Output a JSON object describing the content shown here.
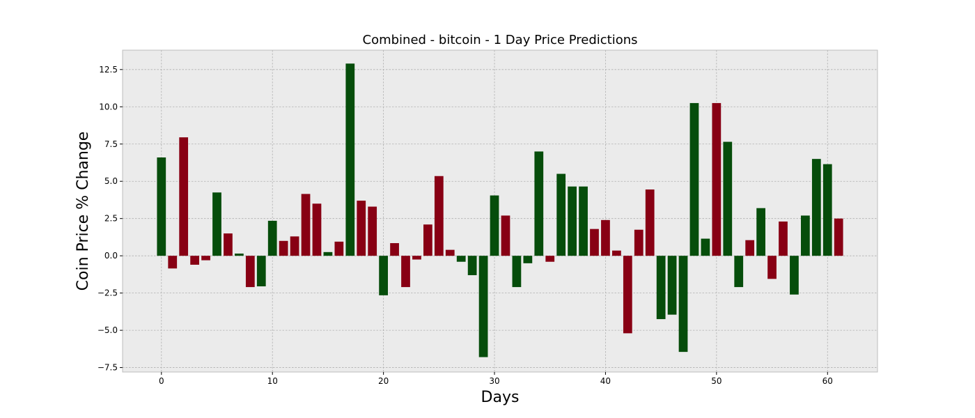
{
  "chart_data": {
    "type": "bar",
    "title": "Combined - bitcoin - 1 Day Price Predictions",
    "xlabel": "Days",
    "ylabel": "Coin Price % Change",
    "xlim": [
      -3.5,
      64.5
    ],
    "ylim": [
      -7.8,
      13.8
    ],
    "xticks": [
      0,
      10,
      20,
      30,
      40,
      50,
      60
    ],
    "yticks": [
      -7.5,
      -5.0,
      -2.5,
      0.0,
      2.5,
      5.0,
      7.5,
      10.0,
      12.5
    ],
    "ytick_labels": [
      "−7.5",
      "−5.0",
      "−2.5",
      "0.0",
      "2.5",
      "5.0",
      "7.5",
      "10.0",
      "12.5"
    ],
    "grid": true,
    "colors": {
      "green": "#064d0b",
      "red": "#880014",
      "background": "#ebebeb"
    },
    "x": [
      0,
      1,
      2,
      3,
      4,
      5,
      6,
      7,
      8,
      9,
      10,
      11,
      12,
      13,
      14,
      15,
      16,
      17,
      18,
      19,
      20,
      21,
      22,
      23,
      24,
      25,
      26,
      27,
      28,
      29,
      30,
      31,
      32,
      33,
      34,
      35,
      36,
      37,
      38,
      39,
      40,
      41,
      42,
      43,
      44,
      45,
      46,
      47,
      48,
      49,
      50,
      51,
      52,
      53,
      54,
      55,
      56,
      57,
      58,
      59,
      60,
      61
    ],
    "values": [
      6.6,
      -0.85,
      7.95,
      -0.6,
      -0.3,
      4.25,
      1.5,
      0.15,
      -2.1,
      -2.05,
      2.35,
      1.0,
      1.3,
      4.15,
      3.5,
      0.25,
      0.95,
      12.9,
      3.7,
      3.3,
      -2.65,
      0.85,
      -2.1,
      -0.25,
      2.1,
      5.35,
      0.4,
      -0.4,
      -1.3,
      -6.8,
      4.05,
      2.7,
      -2.1,
      -0.5,
      7.0,
      -0.4,
      5.5,
      4.65,
      4.65,
      1.8,
      2.4,
      0.35,
      -5.2,
      1.75,
      4.45,
      -4.25,
      -3.95,
      -6.45,
      10.25,
      1.15,
      10.25,
      7.65,
      -2.1,
      1.05,
      3.2,
      -1.55,
      2.3,
      -2.6,
      2.7,
      6.5,
      6.15,
      2.5
    ],
    "bar_colors": [
      "green",
      "red",
      "red",
      "red",
      "red",
      "green",
      "red",
      "green",
      "red",
      "green",
      "green",
      "red",
      "red",
      "red",
      "red",
      "green",
      "red",
      "green",
      "red",
      "red",
      "green",
      "red",
      "red",
      "red",
      "red",
      "red",
      "red",
      "green",
      "green",
      "green",
      "green",
      "red",
      "green",
      "green",
      "green",
      "red",
      "green",
      "green",
      "green",
      "red",
      "red",
      "red",
      "red",
      "red",
      "red",
      "green",
      "green",
      "green",
      "green",
      "green",
      "red",
      "green",
      "green",
      "red",
      "green",
      "red",
      "red",
      "green",
      "green",
      "green",
      "green",
      "red"
    ]
  }
}
